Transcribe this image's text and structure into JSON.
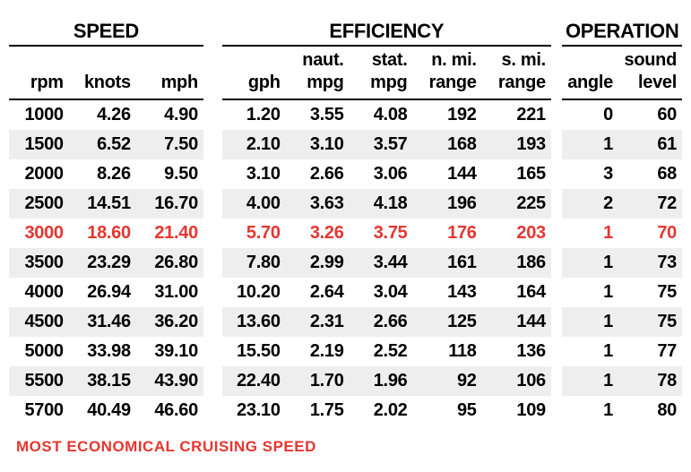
{
  "groups": {
    "speed": "SPEED",
    "efficiency": "EFFICIENCY",
    "operation": "OPERATION"
  },
  "headers": {
    "rpm": {
      "l1": "",
      "l2": "rpm"
    },
    "knots": {
      "l1": "",
      "l2": "knots"
    },
    "mph": {
      "l1": "",
      "l2": "mph"
    },
    "gph": {
      "l1": "",
      "l2": "gph"
    },
    "nmpg": {
      "l1": "naut.",
      "l2": "mpg"
    },
    "smpg": {
      "l1": "stat.",
      "l2": "mpg"
    },
    "nrange": {
      "l1": "n. mi.",
      "l2": "range"
    },
    "srange": {
      "l1": "s. mi.",
      "l2": "range"
    },
    "angle": {
      "l1": "",
      "l2": "angle"
    },
    "sound": {
      "l1": "sound",
      "l2": "level"
    }
  },
  "rows": [
    {
      "rpm": "1000",
      "knots": "4.26",
      "mph": "4.90",
      "gph": "1.20",
      "nmpg": "3.55",
      "smpg": "4.08",
      "nrange": "192",
      "srange": "221",
      "angle": "0",
      "sound": "60",
      "hl": false,
      "shade": false
    },
    {
      "rpm": "1500",
      "knots": "6.52",
      "mph": "7.50",
      "gph": "2.10",
      "nmpg": "3.10",
      "smpg": "3.57",
      "nrange": "168",
      "srange": "193",
      "angle": "1",
      "sound": "61",
      "hl": false,
      "shade": true
    },
    {
      "rpm": "2000",
      "knots": "8.26",
      "mph": "9.50",
      "gph": "3.10",
      "nmpg": "2.66",
      "smpg": "3.06",
      "nrange": "144",
      "srange": "165",
      "angle": "3",
      "sound": "68",
      "hl": false,
      "shade": false
    },
    {
      "rpm": "2500",
      "knots": "14.51",
      "mph": "16.70",
      "gph": "4.00",
      "nmpg": "3.63",
      "smpg": "4.18",
      "nrange": "196",
      "srange": "225",
      "angle": "2",
      "sound": "72",
      "hl": false,
      "shade": true
    },
    {
      "rpm": "3000",
      "knots": "18.60",
      "mph": "21.40",
      "gph": "5.70",
      "nmpg": "3.26",
      "smpg": "3.75",
      "nrange": "176",
      "srange": "203",
      "angle": "1",
      "sound": "70",
      "hl": true,
      "shade": false
    },
    {
      "rpm": "3500",
      "knots": "23.29",
      "mph": "26.80",
      "gph": "7.80",
      "nmpg": "2.99",
      "smpg": "3.44",
      "nrange": "161",
      "srange": "186",
      "angle": "1",
      "sound": "73",
      "hl": false,
      "shade": true
    },
    {
      "rpm": "4000",
      "knots": "26.94",
      "mph": "31.00",
      "gph": "10.20",
      "nmpg": "2.64",
      "smpg": "3.04",
      "nrange": "143",
      "srange": "164",
      "angle": "1",
      "sound": "75",
      "hl": false,
      "shade": false
    },
    {
      "rpm": "4500",
      "knots": "31.46",
      "mph": "36.20",
      "gph": "13.60",
      "nmpg": "2.31",
      "smpg": "2.66",
      "nrange": "125",
      "srange": "144",
      "angle": "1",
      "sound": "75",
      "hl": false,
      "shade": true
    },
    {
      "rpm": "5000",
      "knots": "33.98",
      "mph": "39.10",
      "gph": "15.50",
      "nmpg": "2.19",
      "smpg": "2.52",
      "nrange": "118",
      "srange": "136",
      "angle": "1",
      "sound": "77",
      "hl": false,
      "shade": false
    },
    {
      "rpm": "5500",
      "knots": "38.15",
      "mph": "43.90",
      "gph": "22.40",
      "nmpg": "1.70",
      "smpg": "1.96",
      "nrange": "92",
      "srange": "106",
      "angle": "1",
      "sound": "78",
      "hl": false,
      "shade": true
    },
    {
      "rpm": "5700",
      "knots": "40.49",
      "mph": "46.60",
      "gph": "23.10",
      "nmpg": "1.75",
      "smpg": "2.02",
      "nrange": "95",
      "srange": "109",
      "angle": "1",
      "sound": "80",
      "hl": false,
      "shade": false
    }
  ],
  "footnote": "MOST ECONOMICAL CRUISING SPEED",
  "colors": {
    "highlight": "#e53630",
    "shade": "#eeeeee",
    "text": "#000000"
  }
}
